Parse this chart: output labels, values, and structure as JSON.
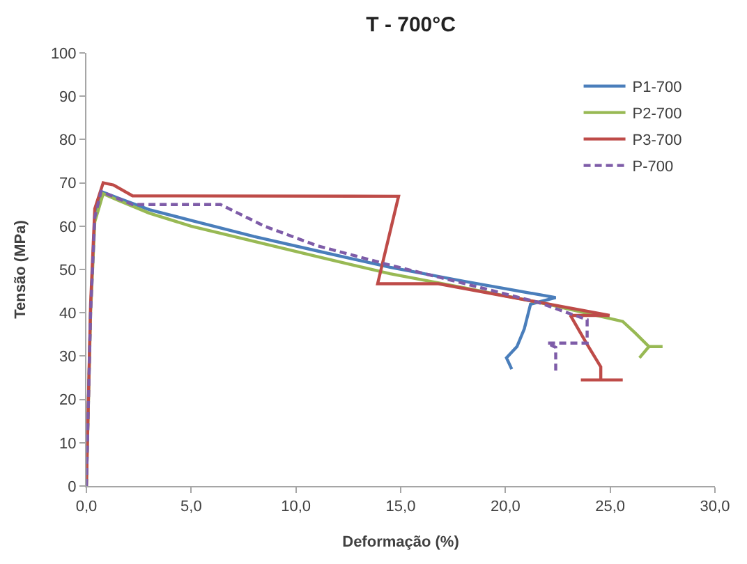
{
  "chart_data": {
    "type": "line",
    "title": "T - 700°C",
    "xlabel": "Deformação (%)",
    "ylabel": "Tensão (MPa)",
    "xlim": [
      0,
      30
    ],
    "ylim": [
      0,
      100
    ],
    "xticks": [
      {
        "value": 0,
        "label": "0,0"
      },
      {
        "value": 5,
        "label": "5,0"
      },
      {
        "value": 10,
        "label": "10,0"
      },
      {
        "value": 15,
        "label": "15,0"
      },
      {
        "value": 20,
        "label": "20,0"
      },
      {
        "value": 25,
        "label": "25,0"
      },
      {
        "value": 30,
        "label": "30,0"
      }
    ],
    "yticks": [
      0,
      10,
      20,
      30,
      40,
      50,
      60,
      70,
      80,
      90,
      100
    ],
    "legend": "top right",
    "marker": "none",
    "series": [
      {
        "name": "P1-700",
        "color": "#4a7ebb",
        "x": [
          0.4,
          0.7,
          1.5,
          3,
          5.1,
          8,
          11,
          14.5,
          18,
          22.4,
          21.2,
          20.9,
          20.55,
          20.05,
          20.3
        ],
        "values": [
          62,
          68,
          66.5,
          63.8,
          61.2,
          57.6,
          54.3,
          50.5,
          47.3,
          43.5,
          42,
          36.3,
          32.2,
          29.6,
          27
        ]
      },
      {
        "name": "P2-700",
        "color": "#98b954",
        "x": [
          0,
          0.2,
          0.4,
          0.8,
          1.5,
          3,
          5,
          8,
          11,
          14.5,
          18,
          22,
          25.6,
          26.2,
          26.85,
          27.5,
          26.85,
          26.4
        ],
        "values": [
          0,
          40,
          61,
          67.5,
          66,
          63,
          60,
          56.5,
          53,
          49,
          45.8,
          42,
          38,
          35.3,
          32.2,
          32.2,
          32.2,
          29.6
        ]
      },
      {
        "name": "P3-700",
        "color": "#be4b48",
        "x": [
          0,
          0.2,
          0.4,
          0.8,
          1.3,
          2.2,
          14.9,
          13.9,
          16.8,
          24.97,
          23.1,
          23.9,
          24.55,
          24.55,
          23.6,
          25.6
        ],
        "values": [
          0,
          42,
          64,
          70,
          69.5,
          67,
          66.9,
          46.7,
          46.7,
          39.4,
          39.4,
          32.7,
          27.5,
          24.5,
          24.5,
          24.5
        ]
      },
      {
        "name": "P-700",
        "color": "#7e5ca8",
        "line_style": "dashed",
        "x": [
          0,
          0.2,
          0.4,
          0.7,
          2.2,
          6.4,
          8.5,
          11,
          14.5,
          18,
          21.5,
          23.9,
          23.9,
          22,
          22.4,
          22.4
        ],
        "values": [
          0,
          40,
          62,
          68,
          65,
          65,
          60,
          55.5,
          51,
          46.8,
          42.5,
          38.4,
          33,
          33,
          32,
          26
        ]
      }
    ]
  }
}
